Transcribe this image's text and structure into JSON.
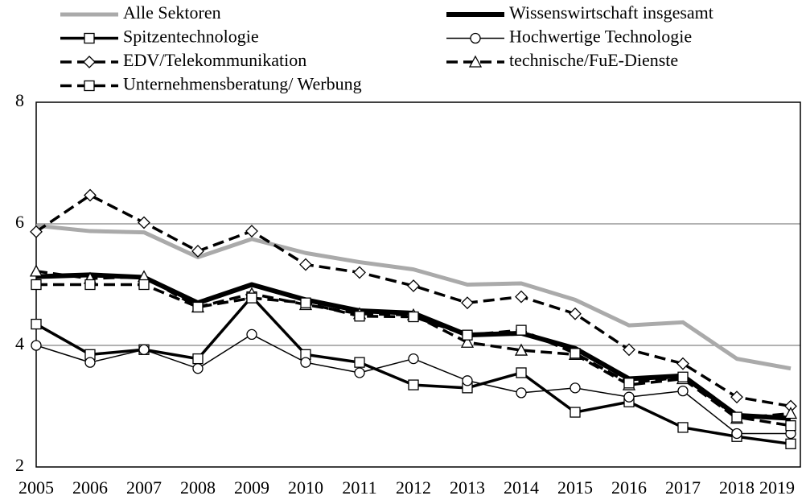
{
  "chart_data": {
    "type": "line",
    "categories": [
      "2005",
      "2006",
      "2007",
      "2008",
      "2009",
      "2010",
      "2011",
      "2012",
      "2013",
      "2014",
      "2015",
      "2016",
      "2017",
      "2018",
      "2019"
    ],
    "ylim": [
      2,
      8
    ],
    "yticks": [
      2,
      4,
      6,
      8
    ],
    "grid": true,
    "series": [
      {
        "name": "Alle Sektoren",
        "color": "#aaaaaa",
        "width": 5,
        "dash": "solid",
        "marker": "none",
        "values": [
          5.97,
          5.88,
          5.86,
          5.45,
          5.75,
          5.52,
          5.37,
          5.25,
          5.0,
          5.02,
          4.75,
          4.33,
          4.38,
          3.78,
          3.62
        ]
      },
      {
        "name": "Wissenswirtschaft insgesamt",
        "color": "#000000",
        "width": 6,
        "dash": "solid",
        "marker": "none",
        "values": [
          5.13,
          5.16,
          5.12,
          4.7,
          5.0,
          4.75,
          4.57,
          4.53,
          4.17,
          4.2,
          3.95,
          3.45,
          3.5,
          2.85,
          2.8
        ]
      },
      {
        "name": "Spitzentechnologie",
        "color": "#000000",
        "width": 3.5,
        "dash": "solid",
        "marker": "square",
        "values": [
          4.35,
          3.85,
          3.93,
          3.78,
          4.8,
          3.85,
          3.72,
          3.35,
          3.3,
          3.55,
          2.9,
          3.07,
          2.65,
          2.5,
          2.38
        ]
      },
      {
        "name": "Hochwertige Technologie",
        "color": "#000000",
        "width": 1.5,
        "dash": "solid",
        "marker": "circle",
        "values": [
          4.0,
          3.72,
          3.93,
          3.62,
          4.18,
          3.72,
          3.55,
          3.78,
          3.42,
          3.22,
          3.3,
          3.15,
          3.25,
          2.55,
          2.55
        ]
      },
      {
        "name": "EDV/Telekommunikation",
        "color": "#000000",
        "width": 3.5,
        "dash": "dashed",
        "marker": "diamond",
        "values": [
          5.87,
          6.47,
          6.02,
          5.55,
          5.88,
          5.33,
          5.2,
          4.98,
          4.7,
          4.8,
          4.52,
          3.93,
          3.7,
          3.15,
          3.0
        ]
      },
      {
        "name": "technische/FuE-Dienste",
        "color": "#000000",
        "width": 3.5,
        "dash": "dashed",
        "marker": "triangle",
        "values": [
          5.22,
          5.1,
          5.13,
          4.63,
          4.85,
          4.67,
          4.52,
          4.5,
          4.05,
          3.92,
          3.85,
          3.35,
          3.45,
          2.8,
          2.88
        ]
      },
      {
        "name": "Unternehmensberatung/ Werbung",
        "color": "#000000",
        "width": 3.5,
        "dash": "dashed",
        "marker": "square",
        "values": [
          5.0,
          5.0,
          5.0,
          4.63,
          4.78,
          4.7,
          4.48,
          4.47,
          4.17,
          4.25,
          3.87,
          3.38,
          3.48,
          2.82,
          2.68
        ]
      }
    ]
  }
}
